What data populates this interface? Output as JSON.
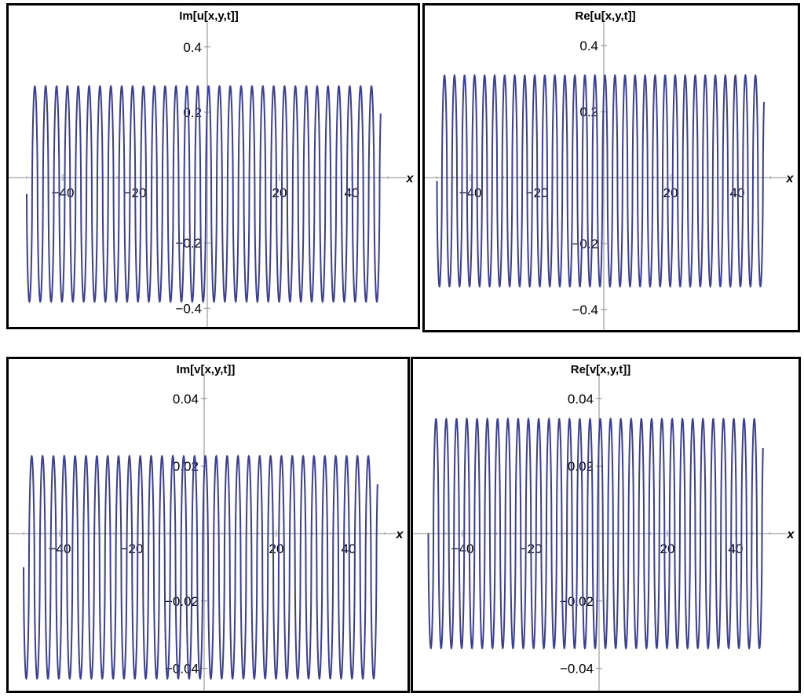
{
  "chart_data": [
    {
      "type": "line",
      "title": "Im[u[x,y,t]]",
      "xlabel": "x",
      "ylabel": "",
      "xlim": [
        -52,
        55
      ],
      "ylim": [
        -0.46,
        0.5
      ],
      "x_ticks": [
        "-40",
        "-20",
        "20",
        "40"
      ],
      "y_ticks": [
        "0.4",
        "0.2",
        "-0.2",
        "-0.4"
      ],
      "series": [
        {
          "name": "",
          "color": "#3b3f96",
          "function": "oscillation",
          "x_range": [
            -50,
            48
          ],
          "peaks": 33,
          "max": 0.28,
          "min": -0.38
        }
      ]
    },
    {
      "type": "line",
      "title": "Re[u[x,y,t]]",
      "xlabel": "x",
      "ylabel": "",
      "xlim": [
        -53,
        55
      ],
      "ylim": [
        -0.46,
        0.5
      ],
      "x_ticks": [
        "-40",
        "-20",
        "20",
        "40"
      ],
      "y_ticks": [
        "0.4",
        "0.2",
        "-0.2",
        "-0.4"
      ],
      "series": [
        {
          "name": "",
          "color": "#3b3f96",
          "function": "oscillation",
          "x_range": [
            -50,
            48
          ],
          "peaks": 33,
          "max": 0.31,
          "min": -0.33
        }
      ]
    },
    {
      "type": "line",
      "title": "Im[v[x,y,t]]",
      "xlabel": "x",
      "ylabel": "",
      "xlim": [
        -52,
        55
      ],
      "ylim": [
        -0.046,
        0.05
      ],
      "x_ticks": [
        "-40",
        "-20",
        "20",
        "40"
      ],
      "y_ticks": [
        "0.04",
        "0.02",
        "-0.02",
        "-0.04"
      ],
      "series": [
        {
          "name": "",
          "color": "#3b3f96",
          "function": "oscillation",
          "x_range": [
            -50,
            48
          ],
          "peaks": 33,
          "max": 0.023,
          "min": -0.043
        }
      ]
    },
    {
      "type": "line",
      "title": "Re[v[x,y,t]]",
      "xlabel": "x",
      "ylabel": "",
      "xlim": [
        -53,
        55
      ],
      "ylim": [
        -0.046,
        0.05
      ],
      "x_ticks": [
        "-40",
        "-20",
        "20",
        "40"
      ],
      "y_ticks": [
        "0.04",
        "0.02",
        "-0.02",
        "-0.04"
      ],
      "series": [
        {
          "name": "",
          "color": "#3b3f96",
          "function": "oscillation",
          "x_range": [
            -50,
            48
          ],
          "peaks": 33,
          "max": 0.034,
          "min": -0.034
        }
      ]
    }
  ]
}
